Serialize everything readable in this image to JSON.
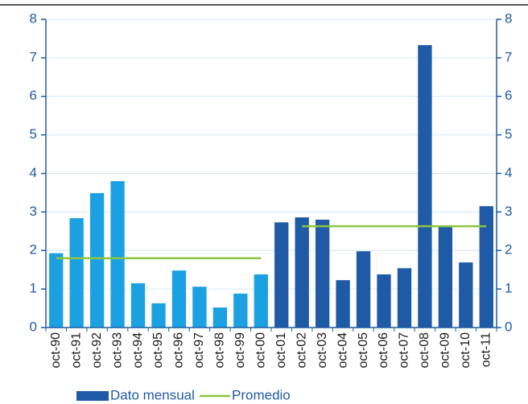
{
  "chart_data": {
    "type": "bar",
    "categories": [
      "oct-90",
      "oct-91",
      "oct-92",
      "oct-93",
      "oct-94",
      "oct-95",
      "oct-96",
      "oct-97",
      "oct-98",
      "oct-99",
      "oct-00",
      "oct-01",
      "oct-02",
      "oct-03",
      "oct-04",
      "oct-05",
      "oct-06",
      "oct-07",
      "oct-08",
      "oct-09",
      "oct-10",
      "oct-11"
    ],
    "series": [
      {
        "name": "Dato mensual",
        "color": "#1f5aa6",
        "point_colors": [
          "#1ba1e2",
          "#1ba1e2",
          "#1ba1e2",
          "#1ba1e2",
          "#1ba1e2",
          "#1ba1e2",
          "#1ba1e2",
          "#1ba1e2",
          "#1ba1e2",
          "#1ba1e2",
          "#1ba1e2",
          "#1f5aa6",
          "#1f5aa6",
          "#1f5aa6",
          "#1f5aa6",
          "#1f5aa6",
          "#1f5aa6",
          "#1f5aa6",
          "#1f5aa6",
          "#1f5aa6",
          "#1f5aa6",
          "#1f5aa6"
        ],
        "values": [
          1.93,
          2.84,
          3.49,
          3.8,
          1.15,
          0.63,
          1.48,
          1.06,
          0.52,
          0.88,
          1.38,
          2.73,
          2.86,
          2.8,
          1.23,
          1.98,
          1.38,
          1.54,
          7.33,
          2.63,
          1.69,
          3.15
        ]
      },
      {
        "name": "Promedio",
        "type": "line",
        "color": "#8cc63f",
        "values": [
          1.8,
          1.8,
          1.8,
          1.8,
          1.8,
          1.8,
          1.8,
          1.8,
          1.8,
          1.8,
          1.8,
          null,
          2.63,
          2.63,
          2.63,
          2.63,
          2.63,
          2.63,
          2.63,
          2.63,
          2.63,
          2.63
        ]
      }
    ],
    "ylim": [
      0,
      8
    ],
    "yticks": [
      0,
      1,
      2,
      3,
      4,
      5,
      6,
      7,
      8
    ],
    "y2lim": [
      0,
      8
    ],
    "y2ticks": [
      0,
      1,
      2,
      3,
      4,
      5,
      6,
      7,
      8
    ],
    "grid": true
  }
}
